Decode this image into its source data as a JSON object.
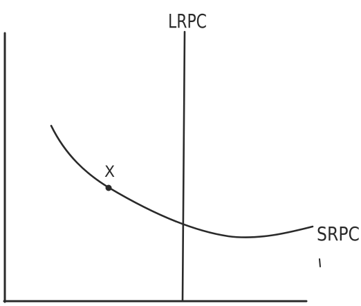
{
  "labels": {
    "vertical_line": "LRPC",
    "curve": "SRPC",
    "point": "X"
  },
  "colors": {
    "ink": "#2a2a2a",
    "background": "#ffffff"
  }
}
